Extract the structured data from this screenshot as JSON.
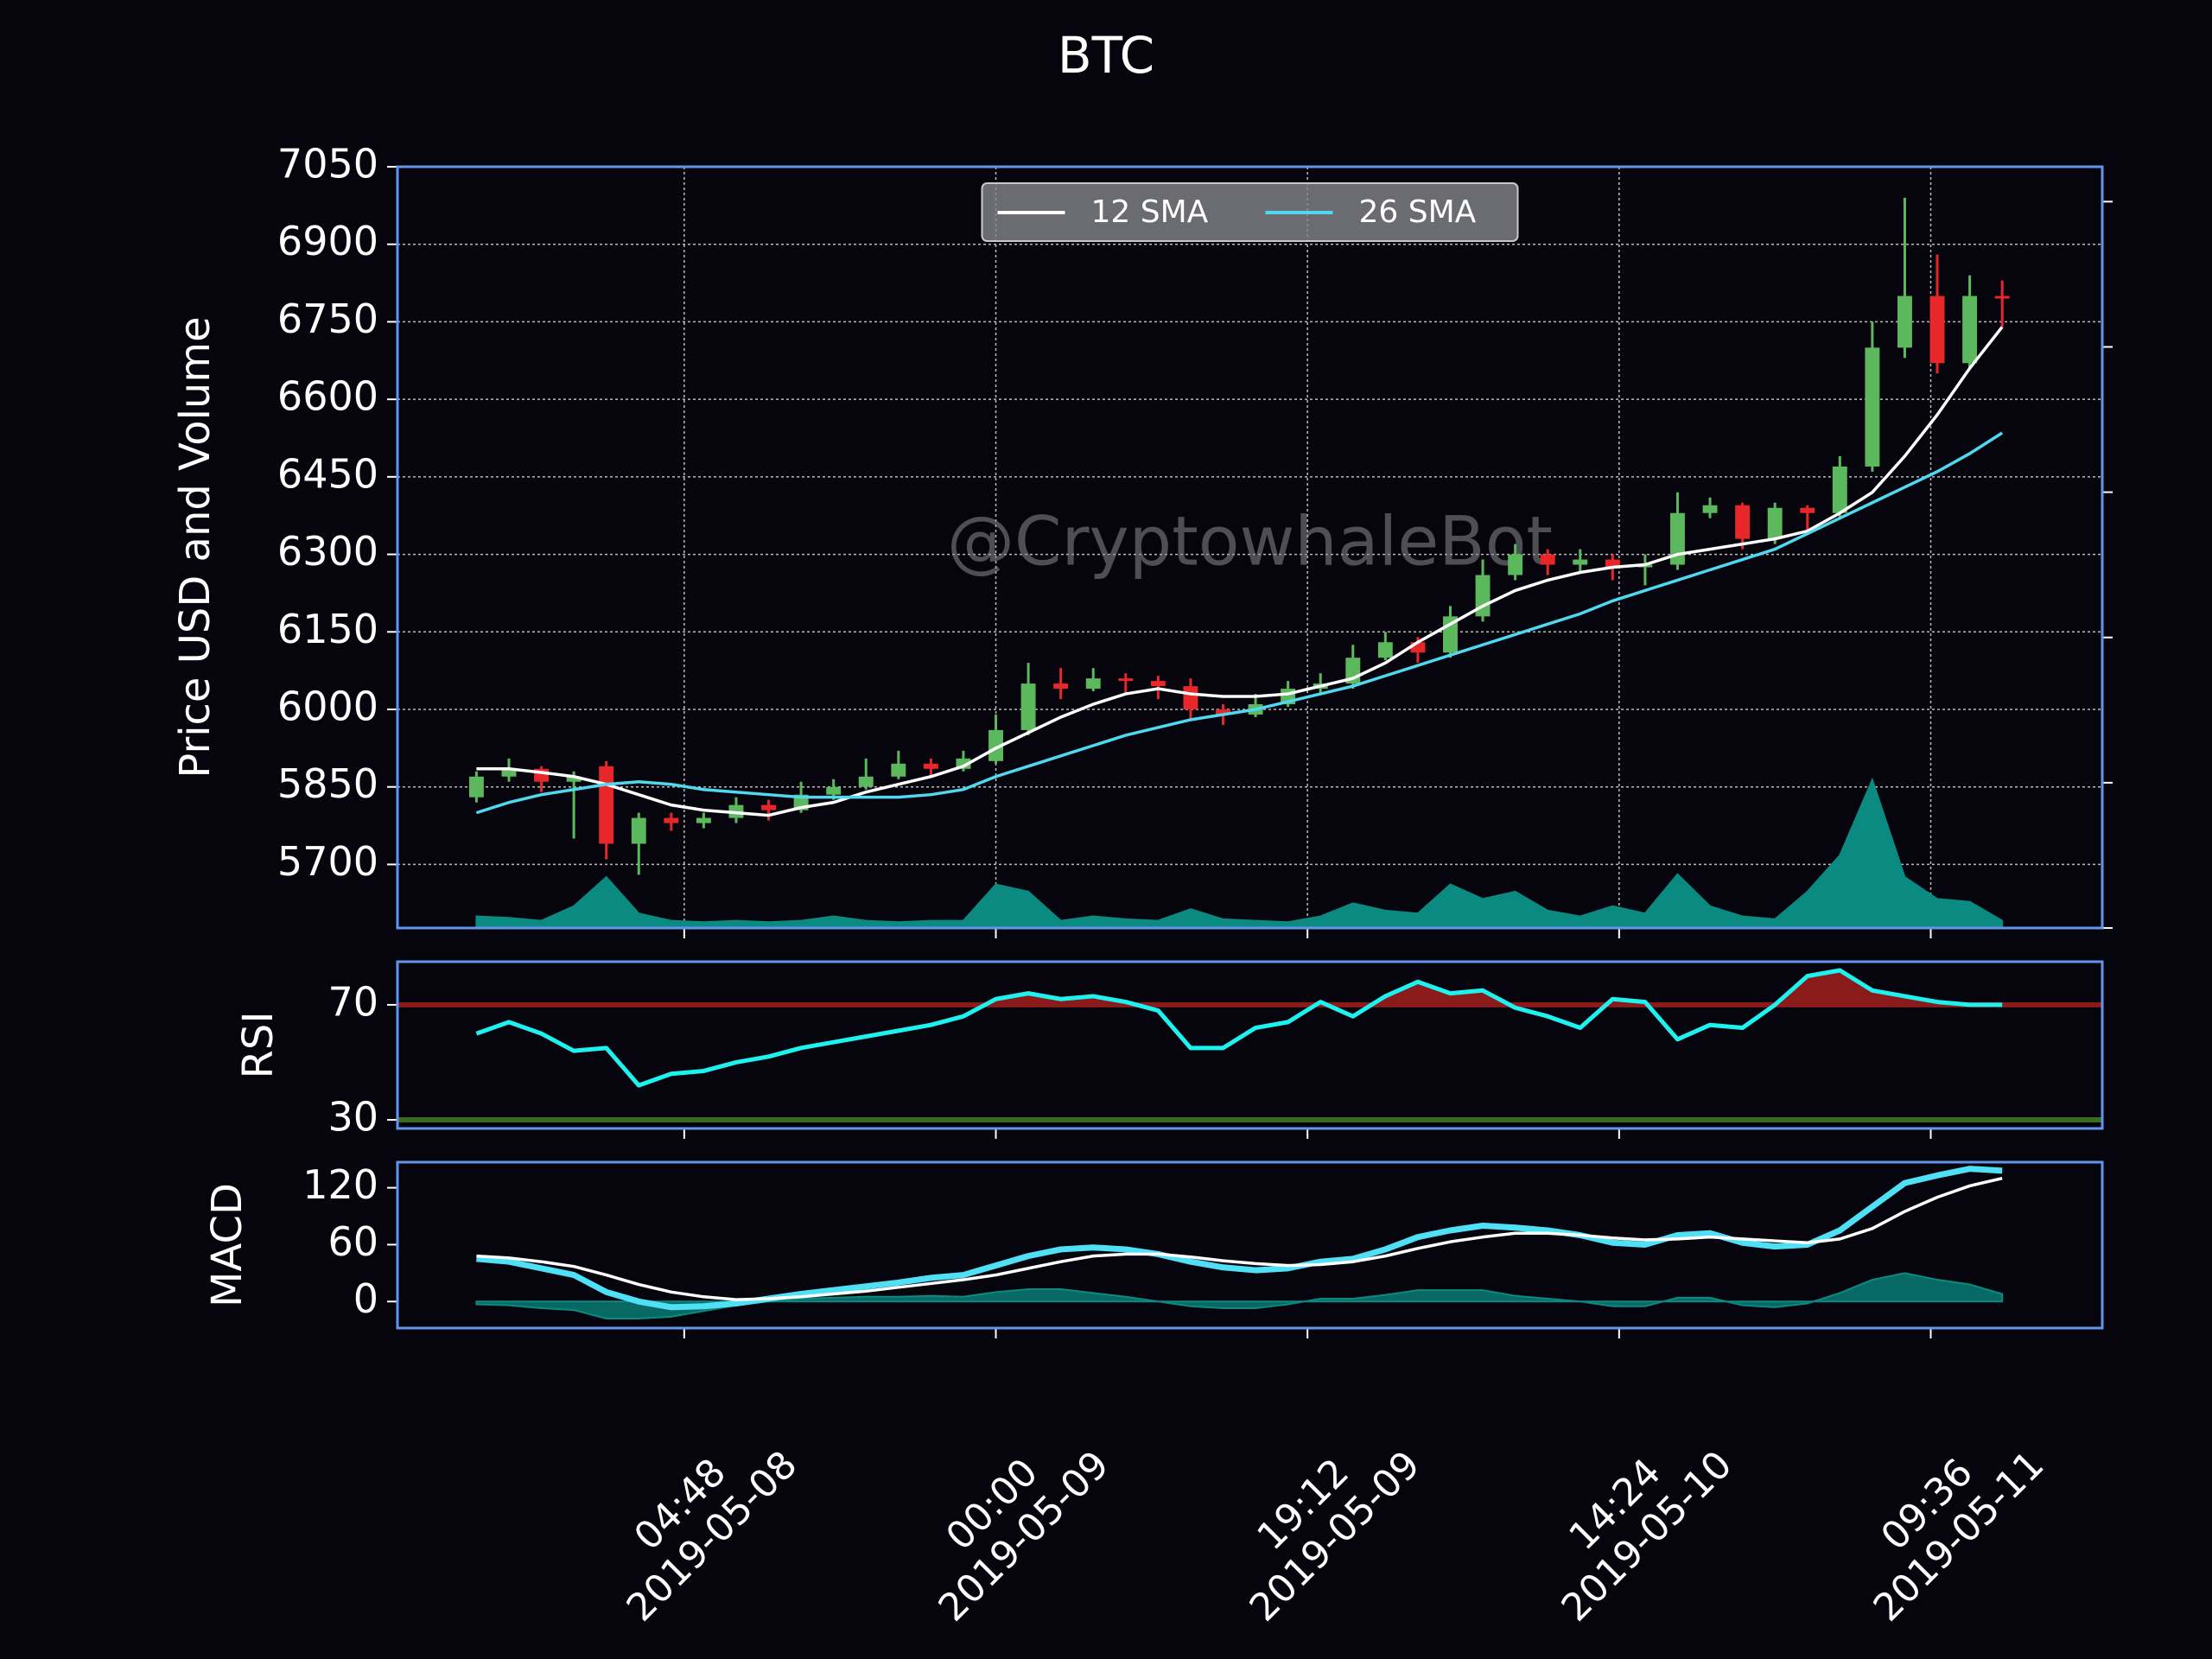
{
  "chart_data": [
    {
      "type": "candlestick",
      "title": "BTC",
      "y_label": "Price USD and Volume",
      "watermark": "@CryptowhaleBot",
      "x": [
        "2019-05-07 16:00",
        "2019-05-07 18:00",
        "2019-05-07 20:00",
        "2019-05-07 22:00",
        "2019-05-08 00:00",
        "2019-05-08 02:00",
        "2019-05-08 04:00",
        "2019-05-08 06:00",
        "2019-05-08 08:00",
        "2019-05-08 10:00",
        "2019-05-08 12:00",
        "2019-05-08 14:00",
        "2019-05-08 16:00",
        "2019-05-08 18:00",
        "2019-05-08 20:00",
        "2019-05-08 22:00",
        "2019-05-09 00:00",
        "2019-05-09 02:00",
        "2019-05-09 04:00",
        "2019-05-09 06:00",
        "2019-05-09 08:00",
        "2019-05-09 10:00",
        "2019-05-09 12:00",
        "2019-05-09 14:00",
        "2019-05-09 16:00",
        "2019-05-09 18:00",
        "2019-05-09 20:00",
        "2019-05-09 22:00",
        "2019-05-10 00:00",
        "2019-05-10 02:00",
        "2019-05-10 04:00",
        "2019-05-10 06:00",
        "2019-05-10 08:00",
        "2019-05-10 10:00",
        "2019-05-10 12:00",
        "2019-05-10 14:00",
        "2019-05-10 16:00",
        "2019-05-10 18:00",
        "2019-05-10 20:00",
        "2019-05-10 22:00",
        "2019-05-11 00:00",
        "2019-05-11 02:00",
        "2019-05-11 04:00",
        "2019-05-11 06:00",
        "2019-05-11 08:00",
        "2019-05-11 10:00",
        "2019-05-11 12:00",
        "2019-05-11 14:00"
      ],
      "xlim": [
        "2019-05-07 11:08",
        "2019-05-11 20:10"
      ],
      "xticks": [
        {
          "value": "2019-05-08 04:48",
          "label": "04:48\n2019-05-08"
        },
        {
          "value": "2019-05-09 00:00",
          "label": "00:00\n2019-05-09"
        },
        {
          "value": "2019-05-09 19:12",
          "label": "19:12\n2019-05-09"
        },
        {
          "value": "2019-05-10 14:24",
          "label": "14:24\n2019-05-10"
        },
        {
          "value": "2019-05-11 09:36",
          "label": "09:36\n2019-05-11"
        }
      ],
      "ylim": [
        5577,
        7050
      ],
      "yticks": [
        5700,
        5850,
        6000,
        6150,
        6300,
        6450,
        6600,
        6750,
        6900,
        7050
      ],
      "y2lim": [
        0,
        5.24
      ],
      "y2ticks": [
        0,
        1,
        2,
        3,
        4,
        5
      ],
      "grid": true,
      "legend": "upper center",
      "up_color": "#5cb85c",
      "down_color": "#e8272b",
      "open": [
        5830,
        5870,
        5885,
        5860,
        5890,
        5740,
        5790,
        5780,
        5790,
        5815,
        5805,
        5835,
        5850,
        5870,
        5895,
        5885,
        5900,
        5960,
        6050,
        6040,
        6060,
        6055,
        6045,
        6000,
        5990,
        6010,
        6040,
        6050,
        6100,
        6130,
        6110,
        6180,
        6260,
        6300,
        6280,
        6290,
        6275,
        6280,
        6380,
        6395,
        6330,
        6390,
        6380,
        6470,
        6700,
        6800,
        6670,
        6800
      ],
      "high": [
        5880,
        5905,
        5890,
        5880,
        5900,
        5800,
        5800,
        5800,
        5830,
        5825,
        5860,
        5865,
        5905,
        5920,
        5905,
        5920,
        5990,
        6090,
        6080,
        6080,
        6070,
        6065,
        6060,
        6010,
        6030,
        6055,
        6070,
        6125,
        6150,
        6140,
        6200,
        6290,
        6320,
        6310,
        6310,
        6300,
        6300,
        6420,
        6410,
        6400,
        6400,
        6395,
        6490,
        6750,
        6990,
        6880,
        6840,
        6830
      ],
      "low": [
        5820,
        5860,
        5840,
        5750,
        5710,
        5680,
        5765,
        5770,
        5780,
        5785,
        5800,
        5825,
        5845,
        5865,
        5870,
        5880,
        5895,
        5950,
        6020,
        6035,
        6030,
        6020,
        5980,
        5970,
        5985,
        6005,
        6030,
        6040,
        6095,
        6090,
        6100,
        6170,
        6250,
        6260,
        6265,
        6250,
        6240,
        6270,
        6370,
        6310,
        6320,
        6340,
        6370,
        6460,
        6680,
        6650,
        6660,
        6740
      ],
      "close": [
        5870,
        5885,
        5860,
        5870,
        5740,
        5790,
        5780,
        5790,
        5815,
        5805,
        5835,
        5850,
        5870,
        5895,
        5885,
        5905,
        5960,
        6050,
        6040,
        6060,
        6055,
        6045,
        6000,
        5990,
        6010,
        6040,
        6050,
        6100,
        6130,
        6110,
        6180,
        6260,
        6300,
        6280,
        6290,
        6275,
        6280,
        6380,
        6395,
        6330,
        6390,
        6380,
        6470,
        6700,
        6800,
        6670,
        6800,
        6795
      ],
      "series": [
        {
          "name": "12 SMA",
          "type": "line",
          "color": "#ffffff",
          "values": [
            5885,
            5885,
            5878,
            5870,
            5855,
            5835,
            5815,
            5805,
            5800,
            5795,
            5810,
            5820,
            5840,
            5855,
            5870,
            5890,
            5925,
            5955,
            5985,
            6010,
            6030,
            6040,
            6030,
            6025,
            6025,
            6030,
            6045,
            6060,
            6090,
            6130,
            6165,
            6200,
            6230,
            6250,
            6265,
            6275,
            6280,
            6300,
            6310,
            6320,
            6330,
            6345,
            6380,
            6420,
            6490,
            6570,
            6660,
            6740
          ]
        },
        {
          "name": "26 SMA",
          "type": "line",
          "color": "#4fd8ee",
          "values": [
            5800,
            5820,
            5835,
            5845,
            5855,
            5860,
            5855,
            5845,
            5840,
            5835,
            5830,
            5830,
            5830,
            5830,
            5835,
            5845,
            5870,
            5890,
            5910,
            5930,
            5950,
            5965,
            5980,
            5990,
            6000,
            6015,
            6030,
            6045,
            6065,
            6085,
            6105,
            6125,
            6145,
            6165,
            6185,
            6210,
            6230,
            6250,
            6270,
            6290,
            6310,
            6340,
            6370,
            6400,
            6430,
            6460,
            6495,
            6535
          ]
        },
        {
          "type": "area",
          "axis": "y2",
          "color": "#0a8a80",
          "values": [
            0.08,
            0.07,
            0.05,
            0.15,
            0.35,
            0.1,
            0.05,
            0.04,
            0.05,
            0.04,
            0.05,
            0.08,
            0.05,
            0.04,
            0.05,
            0.05,
            0.3,
            0.25,
            0.05,
            0.08,
            0.06,
            0.05,
            0.13,
            0.06,
            0.05,
            0.04,
            0.08,
            0.17,
            0.12,
            0.1,
            0.3,
            0.2,
            0.25,
            0.12,
            0.08,
            0.15,
            0.1,
            0.37,
            0.15,
            0.08,
            0.06,
            0.25,
            0.5,
            1.02,
            0.35,
            0.2,
            0.18,
            0.05
          ]
        }
      ]
    },
    {
      "type": "line",
      "y_label": "RSI",
      "ylim": [
        27,
        85
      ],
      "yticks": [
        30,
        70
      ],
      "overbought": 70,
      "overbought_color": "#8b1a1a",
      "oversold": 30,
      "oversold_color": "#3a6b1e",
      "series": [
        {
          "type": "line",
          "color": "#1ef2ee",
          "values": [
            60,
            64,
            60,
            54,
            55,
            42,
            46,
            47,
            50,
            52,
            55,
            57,
            59,
            61,
            63,
            66,
            72,
            74,
            72,
            73,
            71,
            68,
            55,
            55,
            62,
            64,
            71,
            66,
            73,
            78,
            74,
            75,
            69,
            66,
            62,
            72,
            71,
            58,
            63,
            62,
            70,
            80,
            82,
            75,
            73,
            71,
            70,
            70
          ]
        }
      ]
    },
    {
      "type": "line",
      "y_label": "MACD",
      "ylim": [
        -28,
        147
      ],
      "yticks": [
        0,
        60,
        120
      ],
      "series": [
        {
          "type": "area",
          "color": "#0a8a80",
          "values": [
            -3,
            -4,
            -7,
            -9,
            -18,
            -18,
            -16,
            -10,
            -4,
            0,
            3,
            4,
            5,
            5,
            6,
            5,
            10,
            13,
            13,
            9,
            5,
            0,
            -5,
            -7,
            -7,
            -3,
            3,
            3,
            7,
            12,
            12,
            12,
            6,
            3,
            0,
            -5,
            -5,
            4,
            4,
            -4,
            -6,
            -2,
            9,
            23,
            30,
            23,
            18,
            8
          ]
        },
        {
          "type": "line",
          "color": "#4fe0f6",
          "width": 7,
          "values": [
            45,
            42,
            35,
            28,
            10,
            0,
            -6,
            -5,
            -2,
            3,
            8,
            12,
            16,
            20,
            25,
            28,
            38,
            48,
            55,
            57,
            55,
            50,
            42,
            36,
            33,
            35,
            42,
            45,
            55,
            68,
            75,
            80,
            78,
            75,
            70,
            62,
            60,
            70,
            72,
            62,
            58,
            60,
            75,
            100,
            125,
            133,
            140,
            138
          ]
        },
        {
          "type": "line",
          "color": "#ffffff",
          "width": 3.5,
          "values": [
            48,
            46,
            42,
            37,
            28,
            18,
            10,
            5,
            2,
            3,
            5,
            8,
            11,
            15,
            19,
            23,
            28,
            35,
            42,
            48,
            50,
            50,
            47,
            43,
            40,
            38,
            39,
            42,
            48,
            56,
            63,
            68,
            72,
            72,
            70,
            67,
            65,
            66,
            68,
            66,
            64,
            62,
            66,
            77,
            95,
            110,
            122,
            130
          ]
        }
      ]
    }
  ]
}
